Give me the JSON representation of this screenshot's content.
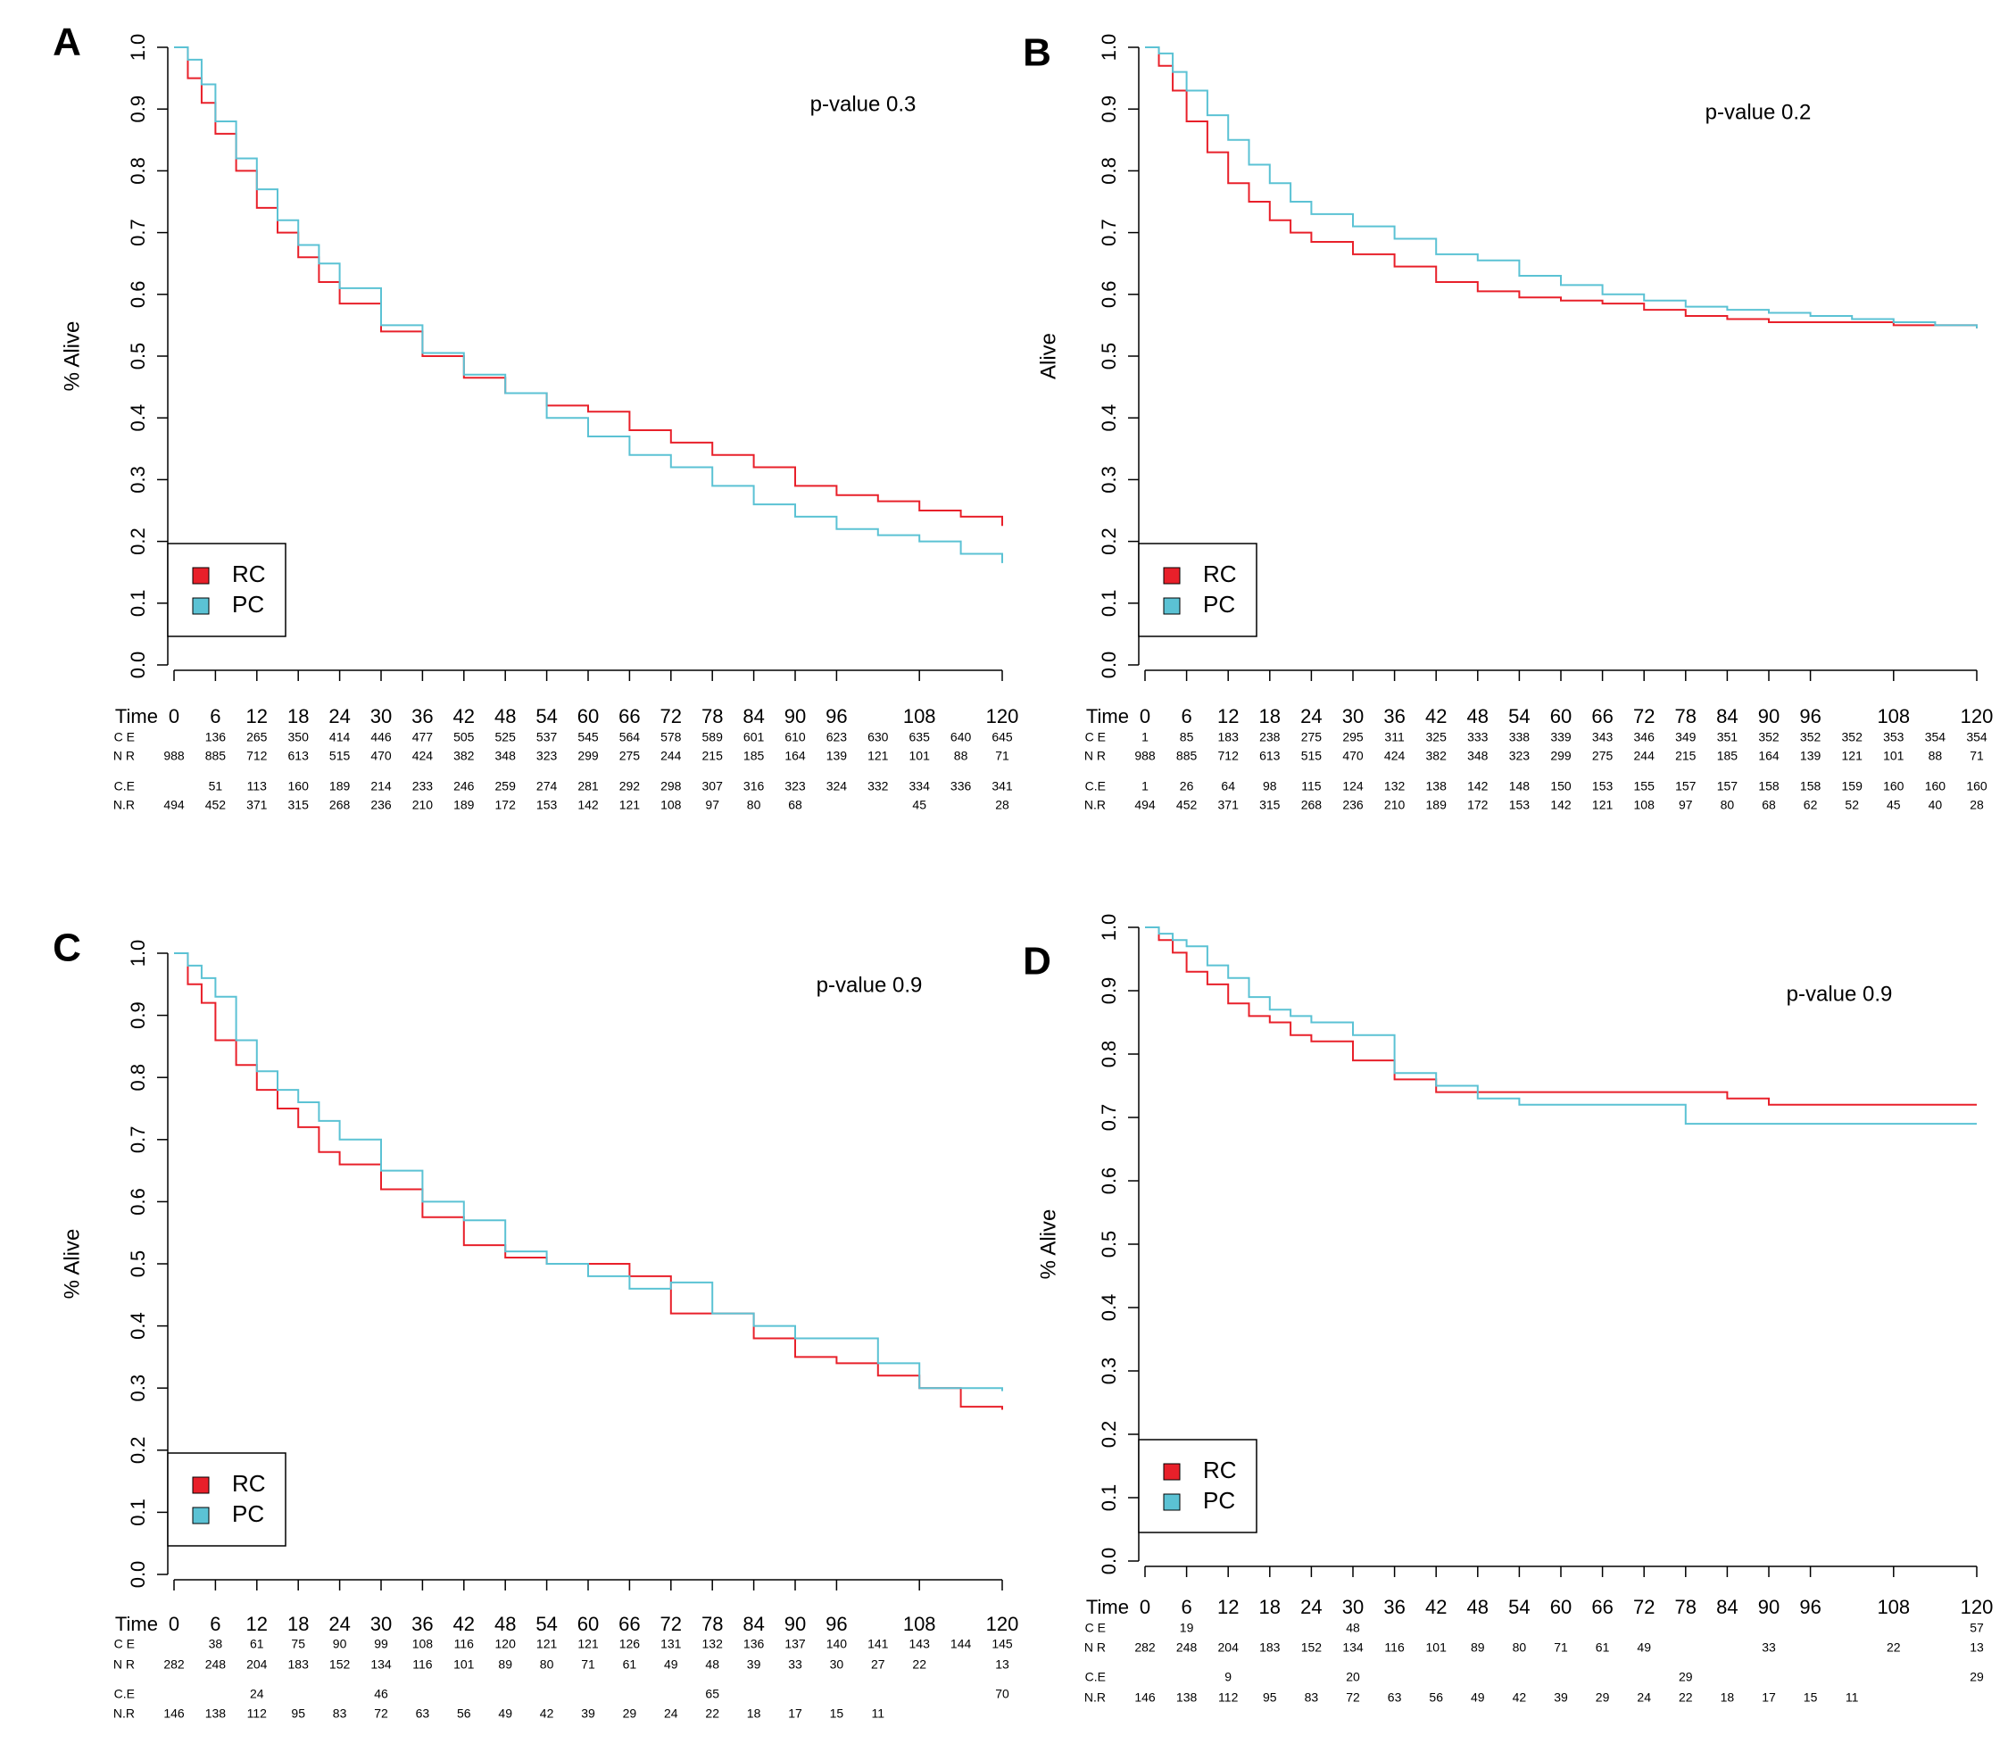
{
  "chart_data": [
    {
      "type": "line",
      "panel_label": "A",
      "annotation": "p-value 0.3",
      "ylabel": "% Alive",
      "xlim": [
        0,
        120
      ],
      "ylim": [
        0,
        1
      ],
      "xticks": [
        0,
        6,
        12,
        18,
        24,
        30,
        36,
        42,
        48,
        54,
        60,
        66,
        72,
        78,
        84,
        90,
        96,
        108,
        120
      ],
      "yticks": [
        {
          "value": 0,
          "label": "0.0"
        },
        0.1,
        0.2,
        0.3,
        0.4,
        0.5,
        0.6,
        0.7,
        0.8,
        0.9,
        {
          "value": 1,
          "label": "1.0"
        }
      ],
      "legend": "bottom-left",
      "series": [
        {
          "name": "RC",
          "color": "#e8202a",
          "x": [
            0,
            2,
            4,
            6,
            9,
            12,
            15,
            18,
            21,
            24,
            30,
            36,
            42,
            48,
            54,
            60,
            66,
            72,
            78,
            84,
            90,
            96,
            102,
            108,
            114,
            120
          ],
          "values": [
            1.0,
            0.95,
            0.91,
            0.86,
            0.8,
            0.74,
            0.7,
            0.66,
            0.62,
            0.585,
            0.54,
            0.5,
            0.465,
            0.44,
            0.42,
            0.41,
            0.38,
            0.36,
            0.34,
            0.32,
            0.29,
            0.275,
            0.265,
            0.25,
            0.24,
            0.225
          ]
        },
        {
          "name": "PC",
          "color": "#5bc2d4",
          "x": [
            0,
            2,
            4,
            6,
            9,
            12,
            15,
            18,
            21,
            24,
            30,
            36,
            42,
            48,
            54,
            60,
            66,
            72,
            78,
            84,
            90,
            96,
            102,
            108,
            114,
            120
          ],
          "values": [
            1.0,
            0.98,
            0.94,
            0.88,
            0.82,
            0.77,
            0.72,
            0.68,
            0.65,
            0.61,
            0.55,
            0.505,
            0.47,
            0.44,
            0.4,
            0.37,
            0.34,
            0.32,
            0.29,
            0.26,
            0.24,
            0.22,
            0.21,
            0.2,
            0.18,
            0.165
          ]
        }
      ],
      "risk_table": {
        "header": "Time",
        "rows": [
          {
            "label": "C E",
            "values": [
              null,
              136,
              265,
              350,
              414,
              446,
              477,
              505,
              525,
              537,
              545,
              564,
              578,
              589,
              601,
              610,
              623,
              630,
              635,
              640,
              645
            ]
          },
          {
            "label": "N R",
            "values": [
              988,
              885,
              712,
              613,
              515,
              470,
              424,
              382,
              348,
              323,
              299,
              275,
              244,
              215,
              185,
              164,
              139,
              121,
              101,
              88,
              71
            ]
          },
          {
            "label": "C.E",
            "values": [
              null,
              51,
              113,
              160,
              189,
              214,
              233,
              246,
              259,
              274,
              281,
              292,
              298,
              307,
              316,
              323,
              324,
              332,
              334,
              336,
              341
            ]
          },
          {
            "label": "N.R",
            "values": [
              494,
              452,
              371,
              315,
              268,
              236,
              210,
              189,
              172,
              153,
              142,
              121,
              108,
              97,
              80,
              68,
              null,
              null,
              45,
              null,
              28
            ]
          }
        ]
      }
    },
    {
      "type": "line",
      "panel_label": "B",
      "annotation": "p-value 0.2",
      "ylabel": "Alive",
      "xlim": [
        0,
        120
      ],
      "ylim": [
        0,
        1
      ],
      "xticks": [
        0,
        6,
        12,
        18,
        24,
        30,
        36,
        42,
        48,
        54,
        60,
        66,
        72,
        78,
        84,
        90,
        96,
        108,
        120
      ],
      "yticks": [
        {
          "value": 0,
          "label": "0.0"
        },
        0.1,
        0.2,
        0.3,
        0.4,
        0.5,
        0.6,
        0.7,
        0.8,
        0.9,
        {
          "value": 1,
          "label": "1.0"
        }
      ],
      "legend": "bottom-left",
      "series": [
        {
          "name": "RC",
          "color": "#e8202a",
          "x": [
            0,
            2,
            4,
            6,
            9,
            12,
            15,
            18,
            21,
            24,
            30,
            36,
            42,
            48,
            54,
            60,
            66,
            72,
            78,
            84,
            90,
            96,
            102,
            108,
            114,
            120
          ],
          "values": [
            1.0,
            0.97,
            0.93,
            0.88,
            0.83,
            0.78,
            0.75,
            0.72,
            0.7,
            0.685,
            0.665,
            0.645,
            0.62,
            0.605,
            0.595,
            0.59,
            0.585,
            0.575,
            0.565,
            0.56,
            0.555,
            0.555,
            0.555,
            0.55,
            0.55,
            0.545
          ]
        },
        {
          "name": "PC",
          "color": "#5bc2d4",
          "x": [
            0,
            2,
            4,
            6,
            9,
            12,
            15,
            18,
            21,
            24,
            30,
            36,
            42,
            48,
            54,
            60,
            66,
            72,
            78,
            84,
            90,
            96,
            102,
            108,
            114,
            120
          ],
          "values": [
            1.0,
            0.99,
            0.96,
            0.93,
            0.89,
            0.85,
            0.81,
            0.78,
            0.75,
            0.73,
            0.71,
            0.69,
            0.665,
            0.655,
            0.63,
            0.615,
            0.6,
            0.59,
            0.58,
            0.575,
            0.57,
            0.565,
            0.56,
            0.555,
            0.55,
            0.545
          ]
        }
      ],
      "risk_table": {
        "header": "Time",
        "rows": [
          {
            "label": "C E",
            "values": [
              1,
              85,
              183,
              238,
              275,
              295,
              311,
              325,
              333,
              338,
              339,
              343,
              346,
              349,
              351,
              352,
              352,
              352,
              353,
              354,
              354
            ]
          },
          {
            "label": "N R",
            "values": [
              988,
              885,
              712,
              613,
              515,
              470,
              424,
              382,
              348,
              323,
              299,
              275,
              244,
              215,
              185,
              164,
              139,
              121,
              101,
              88,
              71
            ]
          },
          {
            "label": "C.E",
            "values": [
              1,
              26,
              64,
              98,
              115,
              124,
              132,
              138,
              142,
              148,
              150,
              153,
              155,
              157,
              157,
              158,
              158,
              159,
              160,
              160,
              160
            ]
          },
          {
            "label": "N.R",
            "values": [
              494,
              452,
              371,
              315,
              268,
              236,
              210,
              189,
              172,
              153,
              142,
              121,
              108,
              97,
              80,
              68,
              62,
              52,
              45,
              40,
              28
            ]
          }
        ]
      }
    },
    {
      "type": "line",
      "panel_label": "C",
      "annotation": "p-value 0.9",
      "ylabel": "% Alive",
      "xlim": [
        0,
        120
      ],
      "ylim": [
        0,
        1
      ],
      "xticks": [
        0,
        6,
        12,
        18,
        24,
        30,
        36,
        42,
        48,
        54,
        60,
        66,
        72,
        78,
        84,
        90,
        96,
        108,
        120
      ],
      "yticks": [
        {
          "value": 0,
          "label": "0.0"
        },
        0.1,
        0.2,
        0.3,
        0.4,
        0.5,
        0.6,
        0.7,
        0.8,
        0.9,
        {
          "value": 1,
          "label": "1.0"
        }
      ],
      "legend": "bottom-left",
      "series": [
        {
          "name": "RC",
          "color": "#e8202a",
          "x": [
            0,
            2,
            4,
            6,
            9,
            12,
            15,
            18,
            21,
            24,
            30,
            36,
            42,
            48,
            54,
            60,
            66,
            72,
            78,
            84,
            90,
            96,
            102,
            108,
            114,
            120
          ],
          "values": [
            1.0,
            0.95,
            0.92,
            0.86,
            0.82,
            0.78,
            0.75,
            0.72,
            0.68,
            0.66,
            0.62,
            0.575,
            0.53,
            0.51,
            0.5,
            0.5,
            0.48,
            0.42,
            0.42,
            0.38,
            0.35,
            0.34,
            0.32,
            0.3,
            0.27,
            0.265
          ]
        },
        {
          "name": "PC",
          "color": "#5bc2d4",
          "x": [
            0,
            2,
            4,
            6,
            9,
            12,
            15,
            18,
            21,
            24,
            30,
            36,
            42,
            48,
            54,
            60,
            66,
            72,
            78,
            84,
            90,
            96,
            102,
            108,
            114,
            120
          ],
          "values": [
            1.0,
            0.98,
            0.96,
            0.93,
            0.86,
            0.81,
            0.78,
            0.76,
            0.73,
            0.7,
            0.65,
            0.6,
            0.57,
            0.52,
            0.5,
            0.48,
            0.46,
            0.47,
            0.42,
            0.4,
            0.38,
            0.38,
            0.34,
            0.3,
            0.3,
            0.295
          ]
        }
      ],
      "risk_table": {
        "header": "Time",
        "rows": [
          {
            "label": "C E",
            "values": [
              null,
              38,
              61,
              75,
              90,
              99,
              108,
              116,
              120,
              121,
              121,
              126,
              131,
              132,
              136,
              137,
              140,
              141,
              143,
              144,
              145
            ]
          },
          {
            "label": "N R",
            "values": [
              282,
              248,
              204,
              183,
              152,
              134,
              116,
              101,
              89,
              80,
              71,
              61,
              49,
              48,
              39,
              33,
              30,
              27,
              22,
              null,
              13
            ]
          },
          {
            "label": "C.E",
            "values": [
              null,
              null,
              24,
              null,
              null,
              46,
              null,
              null,
              null,
              null,
              null,
              null,
              null,
              65,
              null,
              null,
              null,
              null,
              null,
              null,
              70
            ]
          },
          {
            "label": "N.R",
            "values": [
              146,
              138,
              112,
              95,
              83,
              72,
              63,
              56,
              49,
              42,
              39,
              29,
              24,
              22,
              18,
              17,
              15,
              11,
              null,
              null,
              null
            ]
          }
        ]
      }
    },
    {
      "type": "line",
      "panel_label": "D",
      "annotation": "p-value 0.9",
      "ylabel": "% Alive",
      "xlim": [
        0,
        120
      ],
      "ylim": [
        0,
        1
      ],
      "xticks": [
        0,
        6,
        12,
        18,
        24,
        30,
        36,
        42,
        48,
        54,
        60,
        66,
        72,
        78,
        84,
        90,
        96,
        108,
        120
      ],
      "yticks": [
        {
          "value": 0,
          "label": "0.0"
        },
        0.1,
        0.2,
        0.3,
        0.4,
        0.5,
        0.6,
        0.7,
        0.8,
        0.9,
        {
          "value": 1,
          "label": "1.0"
        }
      ],
      "legend": "bottom-left",
      "series": [
        {
          "name": "RC",
          "color": "#e8202a",
          "x": [
            0,
            2,
            4,
            6,
            9,
            12,
            15,
            18,
            21,
            24,
            30,
            36,
            42,
            48,
            54,
            60,
            66,
            72,
            78,
            84,
            90,
            96,
            102,
            108,
            114,
            120
          ],
          "values": [
            1.0,
            0.98,
            0.96,
            0.93,
            0.91,
            0.88,
            0.86,
            0.85,
            0.83,
            0.82,
            0.79,
            0.76,
            0.74,
            0.74,
            0.74,
            0.74,
            0.74,
            0.74,
            0.74,
            0.73,
            0.72,
            0.72,
            0.72,
            0.72,
            0.72,
            0.72
          ]
        },
        {
          "name": "PC",
          "color": "#5bc2d4",
          "x": [
            0,
            2,
            4,
            6,
            9,
            12,
            15,
            18,
            21,
            24,
            30,
            36,
            42,
            48,
            54,
            60,
            66,
            72,
            78,
            84,
            90,
            96,
            102,
            108,
            114,
            120
          ],
          "values": [
            1.0,
            0.99,
            0.98,
            0.97,
            0.94,
            0.92,
            0.89,
            0.87,
            0.86,
            0.85,
            0.83,
            0.77,
            0.75,
            0.73,
            0.72,
            0.72,
            0.72,
            0.72,
            0.69,
            0.69,
            0.69,
            0.69,
            0.69,
            0.69,
            0.69,
            0.69
          ]
        }
      ],
      "risk_table": {
        "header": "Time",
        "rows": [
          {
            "label": "C E",
            "values": [
              null,
              19,
              null,
              null,
              null,
              48,
              null,
              null,
              null,
              null,
              null,
              null,
              null,
              null,
              null,
              null,
              null,
              null,
              null,
              null,
              57
            ]
          },
          {
            "label": "N R",
            "values": [
              282,
              248,
              204,
              183,
              152,
              134,
              116,
              101,
              89,
              80,
              71,
              61,
              49,
              null,
              null,
              33,
              null,
              null,
              22,
              null,
              13
            ]
          },
          {
            "label": "C.E",
            "values": [
              null,
              null,
              9,
              null,
              null,
              20,
              null,
              null,
              null,
              null,
              null,
              null,
              null,
              29,
              null,
              null,
              null,
              null,
              null,
              null,
              29
            ]
          },
          {
            "label": "N.R",
            "values": [
              146,
              138,
              112,
              95,
              83,
              72,
              63,
              56,
              49,
              42,
              39,
              29,
              24,
              22,
              18,
              17,
              15,
              11,
              null,
              null,
              null
            ]
          }
        ]
      }
    }
  ]
}
